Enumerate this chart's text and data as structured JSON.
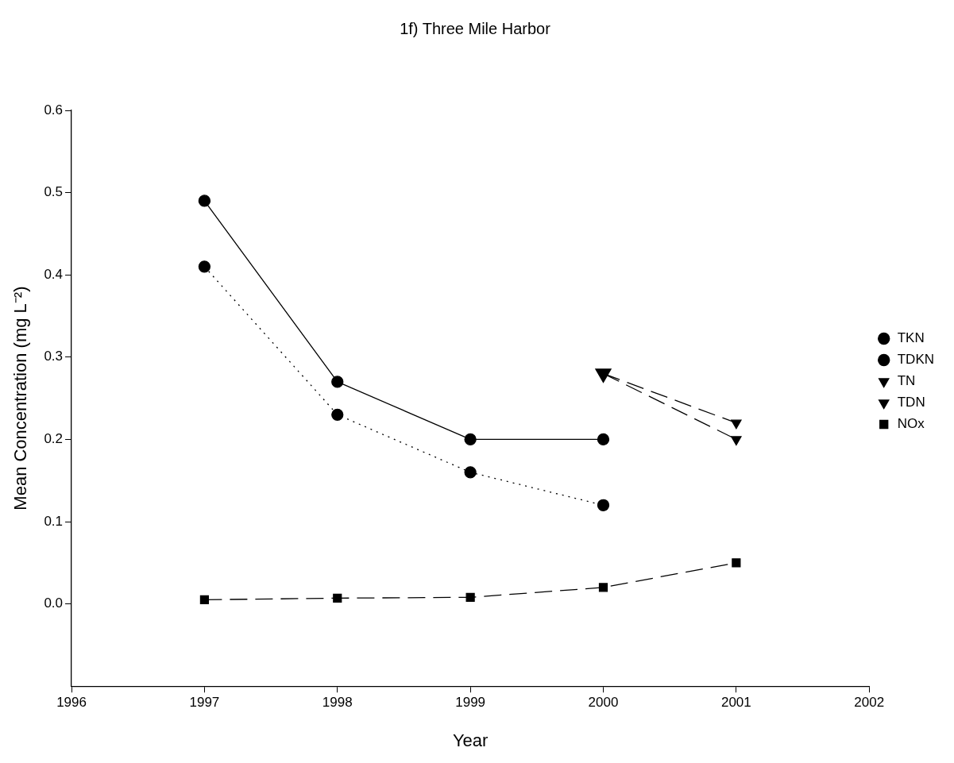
{
  "chart_data": {
    "type": "line",
    "title": "1f) Three Mile Harbor",
    "xlabel": "Year",
    "ylabel": "Mean Concentration (mg L⁻²)",
    "x": [
      1997,
      1998,
      1999,
      2000,
      2001
    ],
    "series": [
      {
        "name": "TKN",
        "color": "#000000",
        "marker": "circle",
        "line_style": "solid",
        "values": [
          0.49,
          0.27,
          0.2,
          0.2,
          null
        ]
      },
      {
        "name": "TDKN",
        "color": "#000000",
        "marker": "circle",
        "line_style": "dotted",
        "values": [
          0.41,
          0.23,
          0.16,
          0.12,
          null
        ]
      },
      {
        "name": "TN",
        "color": "#000000",
        "marker": "triangle",
        "line_style": "dashed",
        "values": [
          null,
          null,
          null,
          0.28,
          0.22
        ]
      },
      {
        "name": "TDN",
        "color": "#000000",
        "marker": "triangle",
        "line_style": "dashed",
        "values": [
          null,
          null,
          null,
          0.28,
          0.2
        ]
      },
      {
        "name": "NOx",
        "color": "#000000",
        "marker": "square",
        "line_style": "dashed",
        "values": [
          0.005,
          0.007,
          0.008,
          0.02,
          0.05
        ]
      }
    ],
    "xlim": [
      1996,
      2002
    ],
    "xticks": [
      1996,
      1997,
      1998,
      1999,
      2000,
      2001,
      2002
    ],
    "ylim": [
      -0.1,
      0.6
    ],
    "yticks": [
      {
        "value": 0.0,
        "label": "0.0"
      },
      {
        "value": 0.1,
        "label": "0.1"
      },
      {
        "value": 0.2,
        "label": "0.2"
      },
      {
        "value": 0.3,
        "label": "0.3"
      },
      {
        "value": 0.4,
        "label": "0.4"
      },
      {
        "value": 0.5,
        "label": "0.5"
      },
      {
        "value": 0.6,
        "label": "0.6"
      }
    ],
    "grid": false,
    "legend": "right"
  }
}
